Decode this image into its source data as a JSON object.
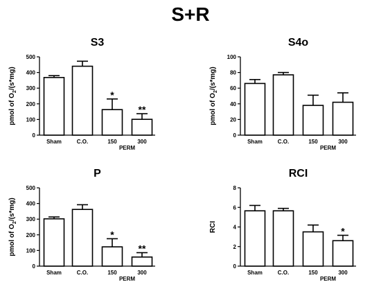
{
  "figure_title": "S+R",
  "chart_data": [
    {
      "type": "bar",
      "title": "S3",
      "categories": [
        "Sham",
        "C.O.",
        "150",
        "300"
      ],
      "values": [
        368,
        440,
        163,
        101
      ],
      "errors": [
        12,
        32,
        68,
        36
      ],
      "significance": [
        "",
        "",
        "*",
        "**"
      ],
      "ylabel_main": "pmol of O",
      "ylabel_sub": "2",
      "ylabel_tail": "/(s*mg)",
      "xlabel": "PERM",
      "ylim": [
        0,
        500
      ],
      "yticks": [
        0,
        100,
        200,
        300,
        400,
        500
      ],
      "ytick_labels": [
        "0",
        "100",
        "200",
        "300",
        "400",
        "500"
      ]
    },
    {
      "type": "bar",
      "title": "S4o",
      "categories": [
        "Sham",
        "C.O.",
        "150",
        "300"
      ],
      "values": [
        66,
        77,
        38,
        42
      ],
      "errors": [
        5,
        3,
        13,
        12
      ],
      "significance": [
        "",
        "",
        "",
        ""
      ],
      "ylabel_main": "pmol of O",
      "ylabel_sub": "2",
      "ylabel_tail": "/(s*mg)",
      "xlabel": "PERM",
      "ylim": [
        0,
        100
      ],
      "yticks": [
        0,
        20,
        40,
        60,
        80,
        100
      ],
      "ytick_labels": [
        "0",
        "20",
        "40",
        "60",
        "80",
        "100"
      ]
    },
    {
      "type": "bar",
      "title": "P",
      "categories": [
        "Sham",
        "C.O.",
        "150",
        "300"
      ],
      "values": [
        302,
        362,
        123,
        58
      ],
      "errors": [
        12,
        30,
        52,
        28
      ],
      "significance": [
        "",
        "",
        "*",
        "**"
      ],
      "ylabel_main": "pmol of O",
      "ylabel_sub": "2",
      "ylabel_tail": "/(s*mg)",
      "xlabel": "PERM",
      "ylim": [
        0,
        500
      ],
      "yticks": [
        0,
        100,
        200,
        300,
        400,
        500
      ],
      "ytick_labels": [
        "0",
        "100",
        "200",
        "300",
        "400",
        "500"
      ]
    },
    {
      "type": "bar",
      "title": "RCI",
      "categories": [
        "Sham",
        "C.O.",
        "150",
        "300"
      ],
      "values": [
        5.65,
        5.65,
        3.5,
        2.6
      ],
      "errors": [
        0.55,
        0.25,
        0.7,
        0.55
      ],
      "significance": [
        "",
        "",
        "",
        "*"
      ],
      "ylabel_main": "RCI",
      "ylabel_sub": "",
      "ylabel_tail": "",
      "xlabel": "PERM",
      "ylim": [
        0,
        8
      ],
      "yticks": [
        0,
        2,
        4,
        6,
        8
      ],
      "ytick_labels": [
        "0",
        "2",
        "4",
        "6",
        "8"
      ]
    }
  ]
}
